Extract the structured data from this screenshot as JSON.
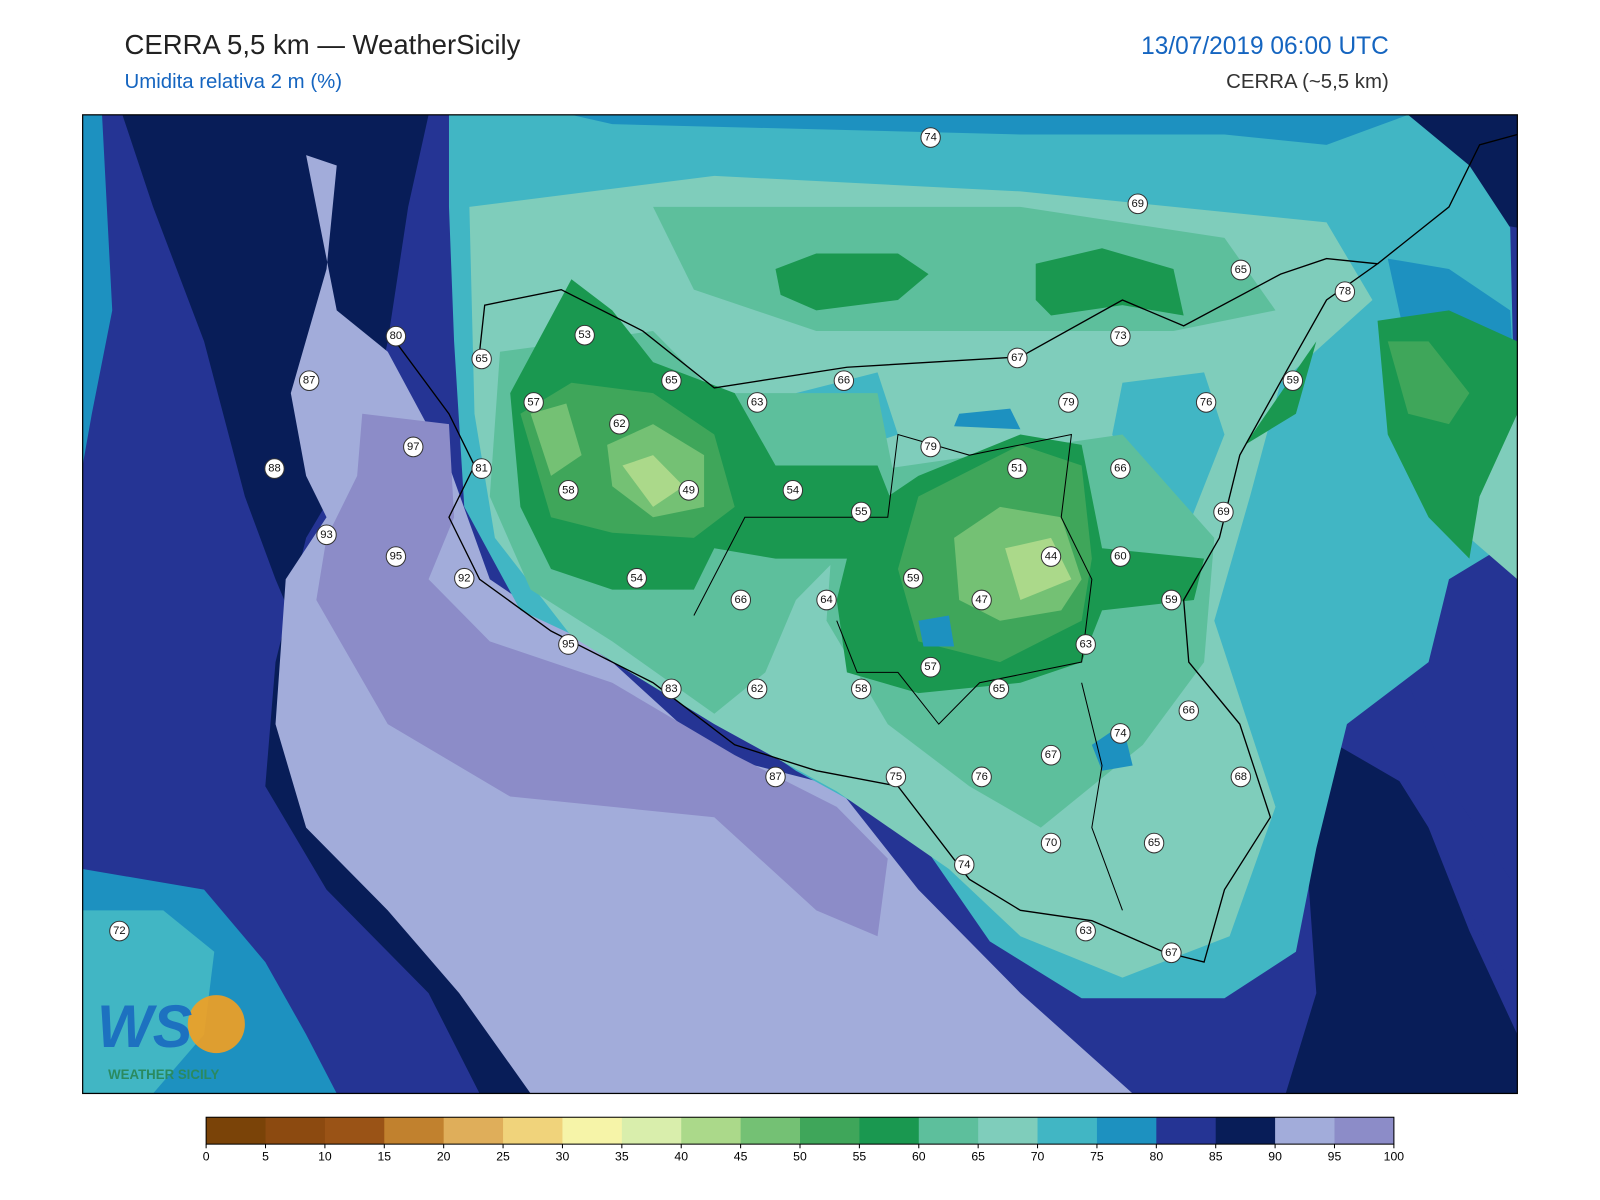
{
  "header": {
    "title": "CERRA 5,5 km — WeatherSicily",
    "subtitle": "Umidita relativa 2 m (%)",
    "datetime": "13/07/2019 06:00 UTC",
    "model": "CERRA (~5,5 km)"
  },
  "logo": {
    "mark": "WS",
    "text": "WEATHER SICILY"
  },
  "stations": [
    74,
    69,
    65,
    78,
    53,
    80,
    65,
    67,
    73,
    87,
    65,
    66,
    57,
    63,
    79,
    76,
    59,
    62,
    97,
    79,
    88,
    81,
    51,
    66,
    58,
    49,
    54,
    55,
    69,
    93,
    95,
    44,
    60,
    92,
    59,
    54,
    66,
    64,
    47,
    59,
    95,
    63,
    57,
    83,
    62,
    58,
    65,
    66,
    74,
    67,
    87,
    75,
    76,
    68,
    70,
    65,
    74,
    72,
    63,
    67
  ],
  "colorbar": {
    "ticks": [
      0,
      5,
      10,
      15,
      20,
      25,
      30,
      35,
      40,
      45,
      50,
      55,
      60,
      65,
      70,
      75,
      80,
      85,
      90,
      95,
      100
    ],
    "colors": [
      "#7a4308",
      "#8c4a10",
      "#9a5316",
      "#c1812e",
      "#dfae5a",
      "#f0d37b",
      "#f6f4a8",
      "#d9eeac",
      "#abd98a",
      "#74c174",
      "#3fa65a",
      "#1a9850",
      "#5dbf9c",
      "#7fcdbb",
      "#41b6c4",
      "#1d91c0",
      "#253494",
      "#081d58",
      "#a2acda",
      "#8c8cc8"
    ]
  }
}
